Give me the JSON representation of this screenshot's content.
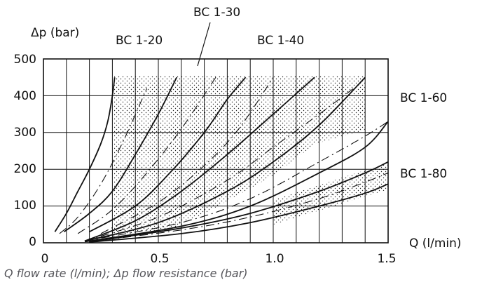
{
  "caption": "Q flow rate (l/min); Δp flow resistance (bar)",
  "chart_data": {
    "type": "line",
    "ylabel": "Δp (bar)",
    "xlabel": "Q (l/min)",
    "xlim": [
      0,
      1.5
    ],
    "ylim": [
      0,
      500
    ],
    "x_ticks": [
      "0",
      "0.5",
      "1.0",
      "1.5"
    ],
    "y_ticks": [
      "0",
      "100",
      "200",
      "300",
      "400",
      "500"
    ],
    "grid": true,
    "series": [
      {
        "name": "BC 1-20",
        "style": "solid",
        "points": [
          [
            0.05,
            30
          ],
          [
            0.1,
            80
          ],
          [
            0.15,
            140
          ],
          [
            0.2,
            200
          ],
          [
            0.25,
            270
          ],
          [
            0.28,
            330
          ],
          [
            0.3,
            400
          ],
          [
            0.31,
            450
          ]
        ]
      },
      {
        "name": "",
        "style": "dashed",
        "points": [
          [
            0.07,
            25
          ],
          [
            0.15,
            70
          ],
          [
            0.25,
            160
          ],
          [
            0.35,
            280
          ],
          [
            0.45,
            420
          ]
        ]
      },
      {
        "name": "BC 1-30",
        "style": "solid",
        "points": [
          [
            0.09,
            30
          ],
          [
            0.2,
            80
          ],
          [
            0.3,
            140
          ],
          [
            0.4,
            240
          ],
          [
            0.5,
            350
          ],
          [
            0.58,
            450
          ]
        ]
      },
      {
        "name": "",
        "style": "dashed",
        "points": [
          [
            0.15,
            25
          ],
          [
            0.3,
            90
          ],
          [
            0.45,
            190
          ],
          [
            0.6,
            310
          ],
          [
            0.75,
            450
          ]
        ]
      },
      {
        "name": "BC 1-40",
        "style": "solid",
        "points": [
          [
            0.2,
            30
          ],
          [
            0.4,
            100
          ],
          [
            0.55,
            190
          ],
          [
            0.7,
            300
          ],
          [
            0.8,
            390
          ],
          [
            0.88,
            450
          ]
        ]
      },
      {
        "name": "",
        "style": "dashed",
        "points": [
          [
            0.25,
            25
          ],
          [
            0.5,
            110
          ],
          [
            0.7,
            210
          ],
          [
            0.85,
            310
          ],
          [
            1.0,
            450
          ]
        ]
      },
      {
        "name": "",
        "style": "solid",
        "points": [
          [
            0.18,
            5
          ],
          [
            0.4,
            60
          ],
          [
            0.6,
            140
          ],
          [
            0.8,
            240
          ],
          [
            1.0,
            350
          ],
          [
            1.18,
            450
          ]
        ]
      },
      {
        "name": "",
        "style": "dashed",
        "points": [
          [
            0.18,
            5
          ],
          [
            0.5,
            70
          ],
          [
            0.8,
            170
          ],
          [
            1.0,
            260
          ],
          [
            1.2,
            350
          ],
          [
            1.35,
            420
          ]
        ]
      },
      {
        "name": "BC 1-60",
        "style": "solid",
        "points": [
          [
            0.18,
            5
          ],
          [
            0.5,
            55
          ],
          [
            0.8,
            140
          ],
          [
            1.0,
            220
          ],
          [
            1.2,
            320
          ],
          [
            1.4,
            450
          ]
        ]
      },
      {
        "name": "",
        "style": "dashed",
        "points": [
          [
            0.18,
            5
          ],
          [
            0.6,
            55
          ],
          [
            0.9,
            120
          ],
          [
            1.2,
            220
          ],
          [
            1.4,
            290
          ],
          [
            1.5,
            330
          ]
        ]
      },
      {
        "name": "",
        "style": "solid",
        "points": [
          [
            0.18,
            3
          ],
          [
            0.6,
            45
          ],
          [
            0.9,
            100
          ],
          [
            1.2,
            190
          ],
          [
            1.4,
            260
          ],
          [
            1.5,
            330
          ]
        ]
      },
      {
        "name": "",
        "style": "solid",
        "points": [
          [
            0.2,
            3
          ],
          [
            0.6,
            40
          ],
          [
            0.9,
            80
          ],
          [
            1.2,
            140
          ],
          [
            1.4,
            190
          ],
          [
            1.5,
            220
          ]
        ]
      },
      {
        "name": "",
        "style": "dashed",
        "points": [
          [
            0.2,
            3
          ],
          [
            0.6,
            35
          ],
          [
            0.9,
            70
          ],
          [
            1.2,
            120
          ],
          [
            1.4,
            165
          ],
          [
            1.5,
            190
          ]
        ]
      },
      {
        "name": "BC 1-80",
        "style": "solid",
        "points": [
          [
            0.2,
            2
          ],
          [
            0.6,
            25
          ],
          [
            0.9,
            55
          ],
          [
            1.2,
            100
          ],
          [
            1.4,
            135
          ],
          [
            1.5,
            160
          ]
        ]
      }
    ],
    "annotations": [
      {
        "text": "BC 1-20"
      },
      {
        "text": "BC 1-30"
      },
      {
        "text": "BC 1-40"
      },
      {
        "text": "BC 1-60"
      },
      {
        "text": "BC 1-80"
      }
    ]
  }
}
